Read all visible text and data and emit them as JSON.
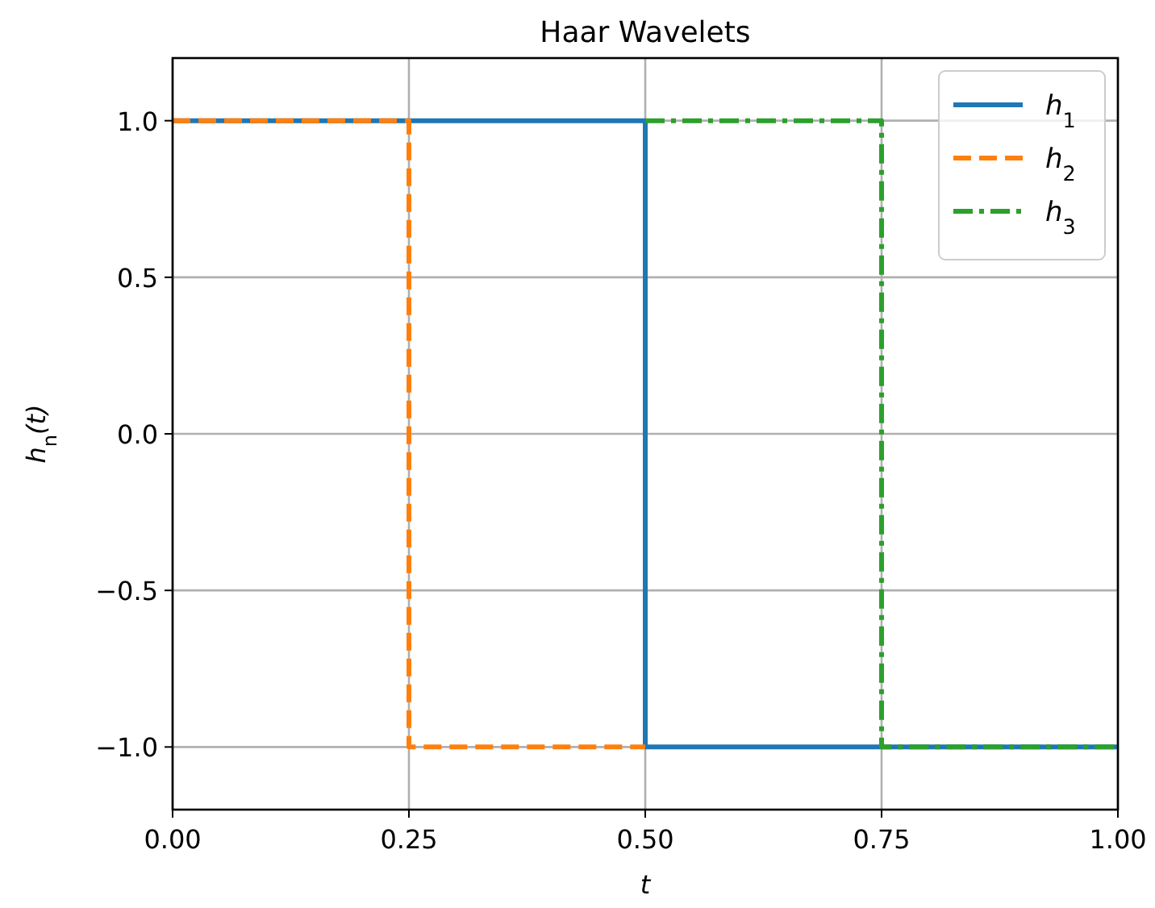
{
  "chart_data": {
    "type": "line",
    "title": "Haar Wavelets",
    "xlabel": "t",
    "ylabel": "h$_{n}$(t)",
    "series": [
      {
        "name": "h$_{1}$",
        "color": "#1f77b4",
        "line_style": "solid",
        "x": [
          0,
          0.5,
          0.5,
          1
        ],
        "values": [
          1,
          1,
          -1,
          -1
        ]
      },
      {
        "name": "h$_{2}$",
        "color": "#ff7f0e",
        "line_style": "dashed",
        "x": [
          0,
          0.25,
          0.25,
          0.5
        ],
        "values": [
          1,
          1,
          -1,
          -1
        ]
      },
      {
        "name": "h$_{3}$",
        "color": "#2ca02c",
        "line_style": "dashdot",
        "x": [
          0.5,
          0.75,
          0.75,
          1
        ],
        "values": [
          1,
          1,
          -1,
          -1
        ]
      }
    ],
    "xlim": [
      0,
      1
    ],
    "xticks": [
      {
        "value": 0,
        "label": "0.00"
      },
      {
        "value": 0.25,
        "label": "0.25"
      },
      {
        "value": 0.5,
        "label": "0.50"
      },
      {
        "value": 0.75,
        "label": "0.75"
      },
      {
        "value": 1,
        "label": "1.00"
      }
    ],
    "ylim": [
      -1.2,
      1.2
    ],
    "yticks": [
      {
        "value": -1,
        "label": "−1.0"
      },
      {
        "value": -0.5,
        "label": "−0.5"
      },
      {
        "value": 0,
        "label": "0.0"
      },
      {
        "value": 0.5,
        "label": "0.5"
      },
      {
        "value": 1,
        "label": "1.0"
      }
    ],
    "grid": true,
    "legend": "top right"
  }
}
